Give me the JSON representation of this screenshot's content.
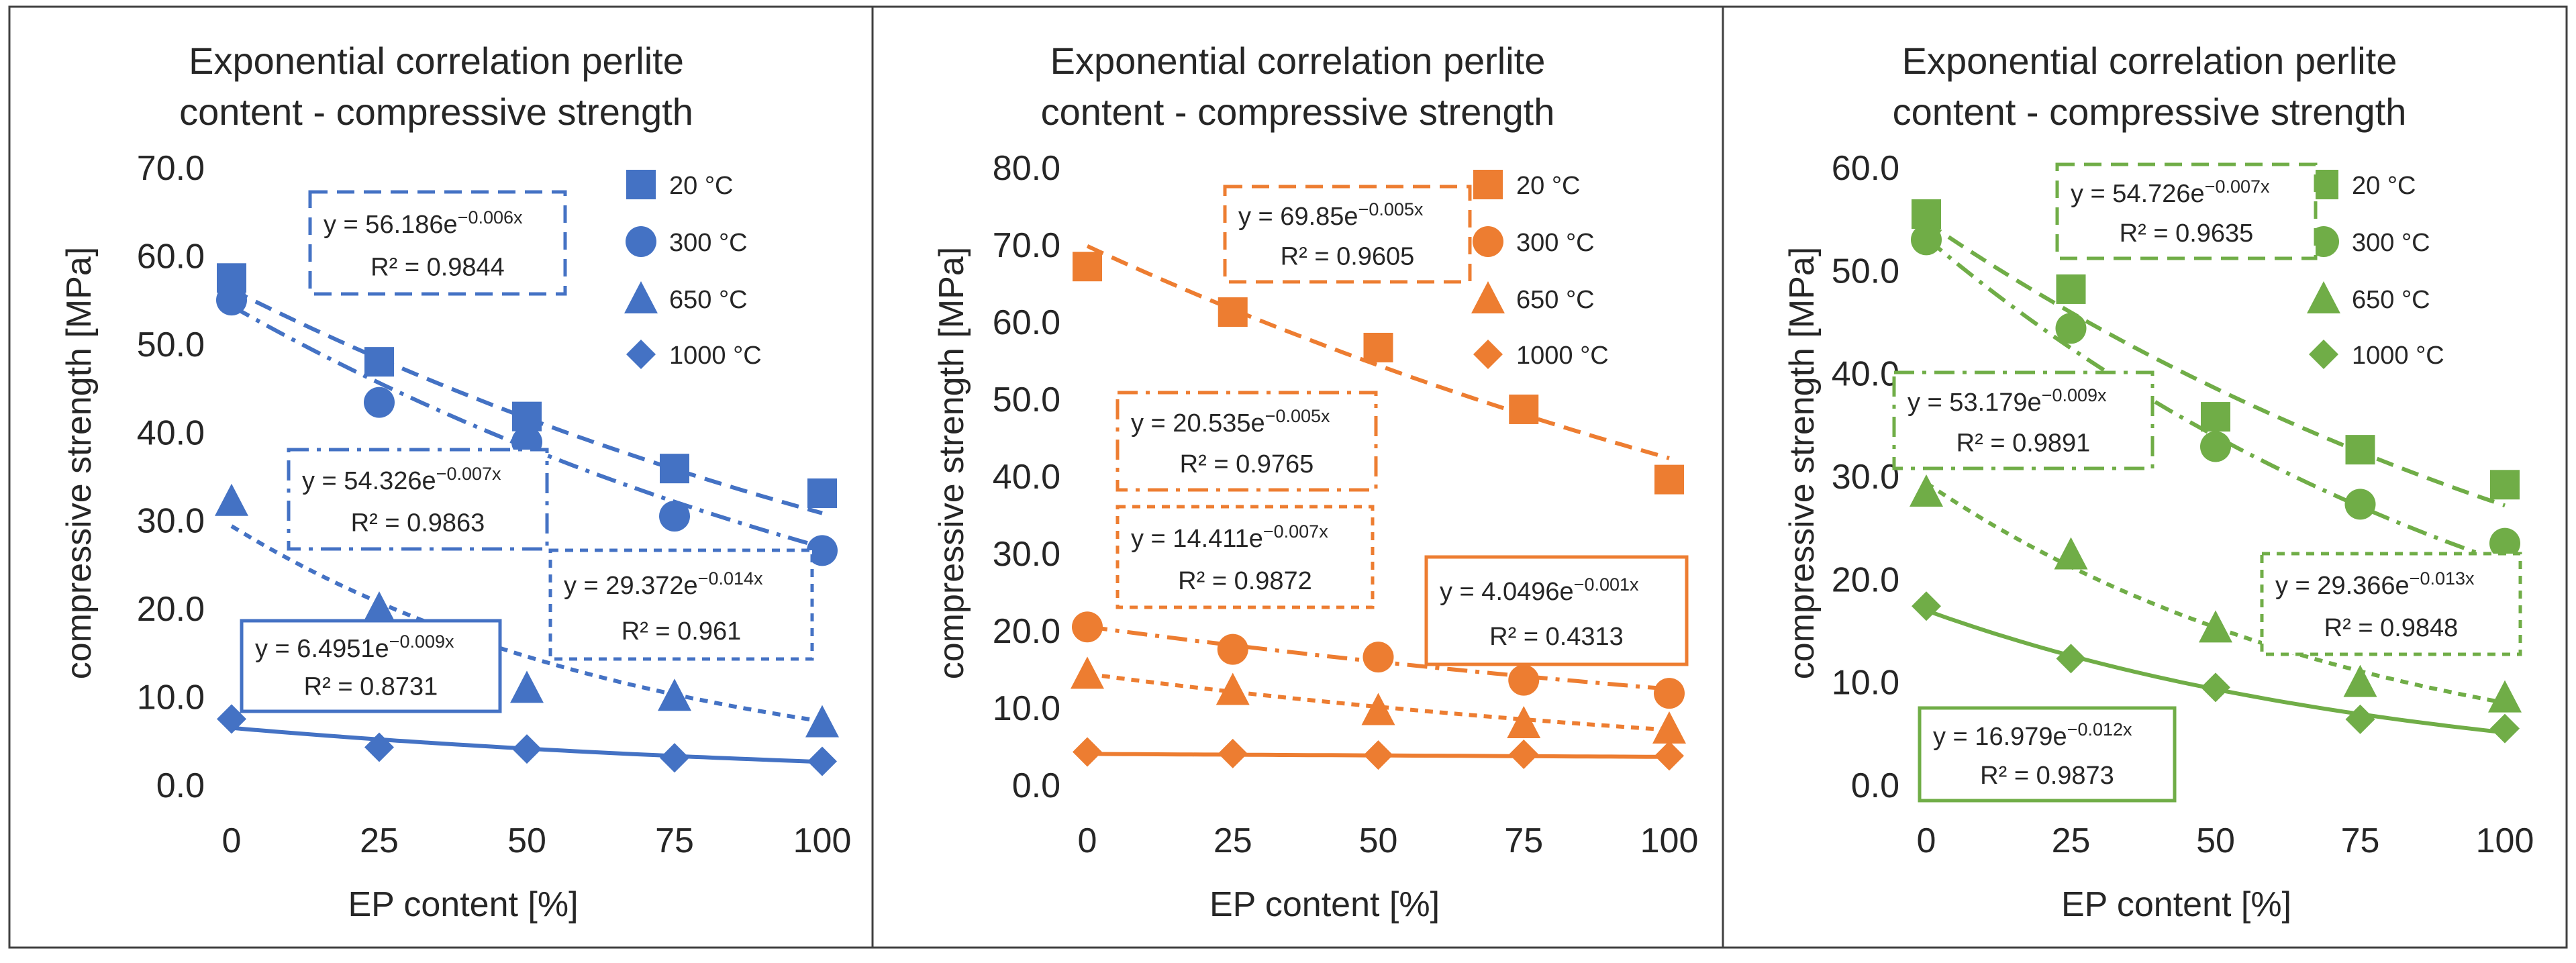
{
  "chart_data": [
    {
      "type": "scatter",
      "title": [
        "Exponential correlation perlite",
        "content - compressive strength"
      ],
      "xlabel": "EP content [%]",
      "ylabel": "compressive strength [MPa]",
      "xlim": [
        0,
        100
      ],
      "ylim": [
        0,
        70
      ],
      "x_ticks": [
        "0",
        "25",
        "50",
        "75",
        "100"
      ],
      "y_ticks": [
        "0.0",
        "10.0",
        "20.0",
        "30.0",
        "40.0",
        "50.0",
        "60.0",
        "70.0"
      ],
      "color": "#4472C4",
      "legend_position": "top-right",
      "grid": false,
      "x": [
        0,
        25,
        50,
        75,
        100
      ],
      "series": [
        {
          "name": "20 °C",
          "marker": "square",
          "values": [
            57.5,
            48.0,
            41.8,
            35.9,
            33.1
          ],
          "trend_a": 56.186,
          "trend_b": -0.006,
          "trend_style": "dashed"
        },
        {
          "name": "300 °C",
          "marker": "circle",
          "values": [
            55.0,
            43.4,
            38.9,
            30.5,
            26.6
          ],
          "trend_a": 54.326,
          "trend_b": -0.007,
          "trend_style": "dashdot"
        },
        {
          "name": "650 °C",
          "marker": "triangle",
          "values": [
            32.2,
            20.0,
            11.0,
            10.1,
            7.1
          ],
          "trend_a": 29.372,
          "trend_b": -0.014,
          "trend_style": "dotted"
        },
        {
          "name": "1000 °C",
          "marker": "diamond",
          "values": [
            7.5,
            4.3,
            4.1,
            3.1,
            2.7
          ],
          "trend_a": 6.4951,
          "trend_b": -0.009,
          "trend_style": "solid"
        }
      ],
      "equations": [
        {
          "line1": "y = 56.186e",
          "exp": "−0.006x",
          "line2": "R² = 0.9844",
          "style": "dashed"
        },
        {
          "line1": "y = 54.326e",
          "exp": "−0.007x",
          "line2": "R² = 0.9863",
          "style": "dashdot"
        },
        {
          "line1": "y = 29.372e",
          "exp": "−0.014x",
          "line2": "R² = 0.961",
          "style": "dotted"
        },
        {
          "line1": "y = 6.4951e",
          "exp": "−0.009x",
          "line2": "R² = 0.8731",
          "style": "solid"
        }
      ]
    },
    {
      "type": "scatter",
      "title": [
        "Exponential correlation perlite",
        "content - compressive strength"
      ],
      "xlabel": "EP content [%]",
      "ylabel": "compressive strength [MPa]",
      "xlim": [
        0,
        100
      ],
      "ylim": [
        0,
        80
      ],
      "x_ticks": [
        "0",
        "25",
        "50",
        "75",
        "100"
      ],
      "y_ticks": [
        "0.0",
        "10.0",
        "20.0",
        "30.0",
        "40.0",
        "50.0",
        "60.0",
        "70.0",
        "80.0"
      ],
      "color": "#ED7D31",
      "legend_position": "top-right",
      "grid": false,
      "x": [
        0,
        25,
        50,
        75,
        100
      ],
      "series": [
        {
          "name": "20 °C",
          "marker": "square",
          "values": [
            67.2,
            61.3,
            56.7,
            48.7,
            39.6
          ],
          "trend_a": 69.85,
          "trend_b": -0.005,
          "trend_style": "dashed"
        },
        {
          "name": "300 °C",
          "marker": "circle",
          "values": [
            20.5,
            17.6,
            16.6,
            13.6,
            11.9
          ],
          "trend_a": 20.535,
          "trend_b": -0.005,
          "trend_style": "dashdot"
        },
        {
          "name": "650 °C",
          "marker": "triangle",
          "values": [
            14.4,
            12.3,
            9.7,
            8.0,
            7.3
          ],
          "trend_a": 14.411,
          "trend_b": -0.007,
          "trend_style": "dotted"
        },
        {
          "name": "1000 °C",
          "marker": "diamond",
          "values": [
            4.3,
            4.1,
            3.9,
            4.0,
            3.8
          ],
          "trend_a": 4.0496,
          "trend_b": -0.001,
          "trend_style": "solid"
        }
      ],
      "equations": [
        {
          "line1": "y = 69.85e",
          "exp": "−0.005x",
          "line2": "R² = 0.9605",
          "style": "dashed"
        },
        {
          "line1": "y = 20.535e",
          "exp": "−0.005x",
          "line2": "R² = 0.9765",
          "style": "dashdot"
        },
        {
          "line1": "y = 14.411e",
          "exp": "−0.007x",
          "line2": "R² = 0.9872",
          "style": "dotted"
        },
        {
          "line1": "y = 4.0496e",
          "exp": "−0.001x",
          "line2": "R² = 0.4313",
          "style": "solid"
        }
      ]
    },
    {
      "type": "scatter",
      "title": [
        "Exponential correlation perlite",
        "content - compressive strength"
      ],
      "xlabel": "EP content [%]",
      "ylabel": "compressive strength [MPa]",
      "xlim": [
        0,
        100
      ],
      "ylim": [
        0,
        60
      ],
      "x_ticks": [
        "0",
        "25",
        "50",
        "75",
        "100"
      ],
      "y_ticks": [
        "0.0",
        "10.0",
        "20.0",
        "30.0",
        "40.0",
        "50.0",
        "60.0"
      ],
      "color": "#70AD47",
      "legend_position": "top-right",
      "grid": false,
      "x": [
        0,
        25,
        50,
        75,
        100
      ],
      "series": [
        {
          "name": "20 °C",
          "marker": "square",
          "values": [
            55.5,
            48.2,
            35.8,
            32.6,
            29.2
          ],
          "trend_a": 54.726,
          "trend_b": -0.007,
          "trend_style": "dashed"
        },
        {
          "name": "300 °C",
          "marker": "circle",
          "values": [
            53.0,
            44.4,
            32.9,
            27.3,
            23.5
          ],
          "trend_a": 53.179,
          "trend_b": -0.009,
          "trend_style": "dashdot"
        },
        {
          "name": "650 °C",
          "marker": "triangle",
          "values": [
            28.5,
            22.4,
            15.3,
            10.0,
            8.5
          ],
          "trend_a": 29.366,
          "trend_b": -0.013,
          "trend_style": "dotted"
        },
        {
          "name": "1000 °C",
          "marker": "diamond",
          "values": [
            17.4,
            12.3,
            9.5,
            6.4,
            5.5
          ],
          "trend_a": 16.979,
          "trend_b": -0.012,
          "trend_style": "solid"
        }
      ],
      "equations": [
        {
          "line1": "y = 54.726e",
          "exp": "−0.007x",
          "line2": "R² = 0.9635",
          "style": "dashed"
        },
        {
          "line1": "y = 53.179e",
          "exp": "−0.009x",
          "line2": "R² = 0.9891",
          "style": "dashdot"
        },
        {
          "line1": "y = 29.366e",
          "exp": "−0.013x",
          "line2": "R² = 0.9848",
          "style": "dotted"
        },
        {
          "line1": "y = 16.979e",
          "exp": "−0.012x",
          "line2": "R² = 0.9873",
          "style": "solid"
        }
      ]
    }
  ]
}
